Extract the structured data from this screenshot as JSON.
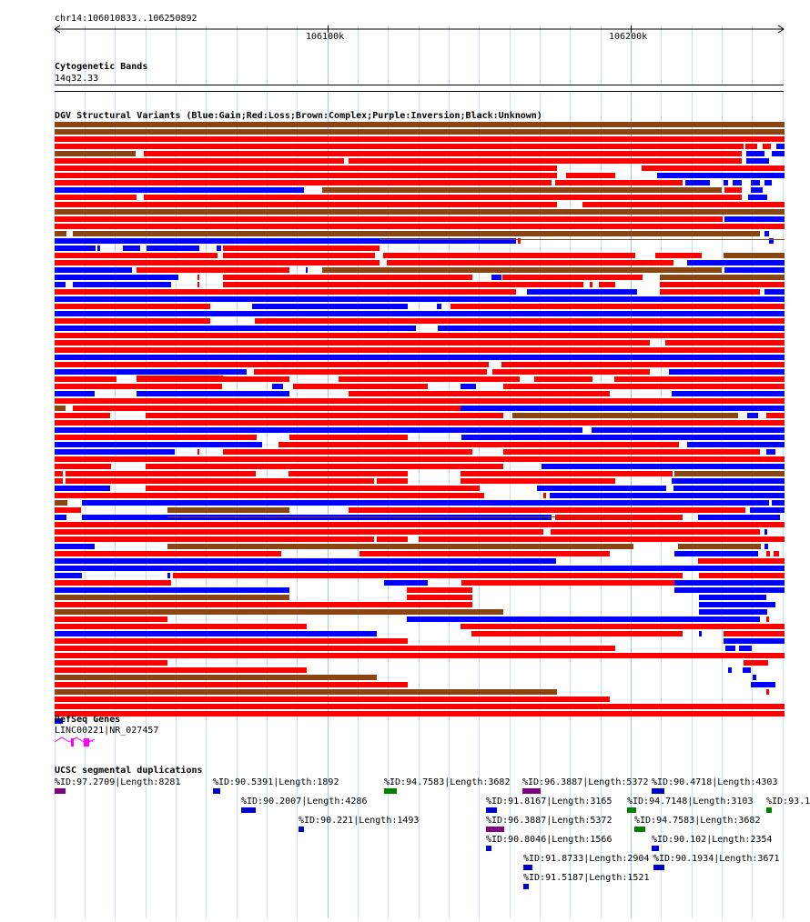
{
  "ruler": {
    "location": "chr14:106010833..106250892",
    "ticks": [
      "106100k",
      "106200k"
    ]
  },
  "cytoband": {
    "title": "Cytogenetic Bands",
    "band": "14q32.33"
  },
  "dgv": {
    "title": "DGV Structural Variants (Blue:Gain;Red:Loss;Brown:Complex;Purple:Inversion;Black:Unknown)",
    "colors": {
      "gain": "#0000ff",
      "loss": "#ff0000",
      "complex": "#8b4513",
      "inversion": "#800080",
      "unknown": "#000000"
    }
  },
  "refseq": {
    "title": "RefSeq Genes",
    "gene_label": "LINC00221|NR_027457",
    "gene_color": "#ff00ff"
  },
  "segdups": {
    "title": "UCSC segmental duplications",
    "labels": [
      "%ID:97.2709|Length:8281",
      "%ID:90.5391|Length:1892",
      "%ID:94.7583|Length:3682",
      "%ID:96.3887|Length:5372",
      "%ID:90.4718|Length:4303",
      "%ID:90.2007|Length:4286",
      "%ID:91.8167|Length:3165",
      "%ID:94.7148|Length:3103",
      "%ID:93.1",
      "%ID:90.221|Length:1493",
      "%ID:96.3887|Length:5372",
      "%ID:94.7583|Length:3682",
      "%ID:90.8046|Length:1566",
      "%ID:90.102|Length:2354",
      "%ID:91.8733|Length:2904",
      "%ID:90.1934|Length:3671",
      "%ID:91.5187|Length:1521"
    ],
    "colors": {
      "blue": "#0000cc",
      "purple": "#800080",
      "green": "#008000"
    }
  }
}
